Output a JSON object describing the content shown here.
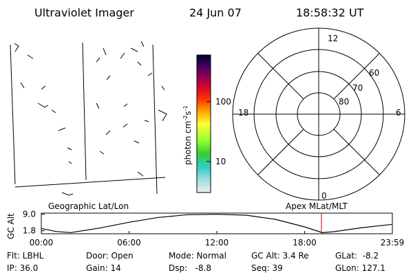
{
  "header": {
    "title": "Ultraviolet Imager",
    "date": "24 Jun 07",
    "time": "18:58:32 UT"
  },
  "colorbar": {
    "label_parts": [
      "photon cm",
      "-2",
      "s",
      "-1"
    ],
    "ticks": [
      "100",
      "10"
    ]
  },
  "polar": {
    "clock_labels": [
      "12",
      "18",
      "6",
      "0"
    ],
    "lat_labels": [
      "60",
      "70",
      "80"
    ]
  },
  "panel_labels": {
    "left": "Geographic Lat/Lon",
    "right": "Apex MLat/MLT"
  },
  "chart_data": {
    "type": "line",
    "ylabel": "GC Alt",
    "x": [
      0,
      1,
      2,
      4,
      6,
      8,
      10,
      12,
      14,
      16,
      18,
      19.2,
      20,
      22,
      24
    ],
    "values": [
      2.8,
      1.5,
      1.0,
      3.0,
      5.5,
      7.6,
      8.8,
      9.0,
      8.6,
      6.8,
      3.5,
      1.0,
      1.4,
      3.2,
      4.6
    ],
    "color": "#000000",
    "marker_x": 19.15,
    "marker_color": "#cc0000",
    "xlim": [
      0,
      24
    ],
    "xticks": [
      {
        "value": 0,
        "label": "00:00"
      },
      {
        "value": 6,
        "label": "06:00"
      },
      {
        "value": 12,
        "label": "12:00"
      },
      {
        "value": 18,
        "label": "18:00"
      },
      {
        "value": 24,
        "label": "23:59"
      }
    ],
    "ylim": [
      0.5,
      9.5
    ],
    "yticks": [
      {
        "value": 1.8,
        "label": "1.8"
      },
      {
        "value": 9.0,
        "label": "9.0"
      }
    ]
  },
  "info": [
    [
      "Flt: LBHL",
      "Door: Open",
      "Mode: Normal",
      "GC Alt: 3.4 Re",
      "GLat:  -8.2"
    ],
    [
      "IP: 36.0",
      "Gain: 14",
      "Dsp:   -8.8",
      "Seq: 39",
      "GLon: 127.1"
    ]
  ]
}
